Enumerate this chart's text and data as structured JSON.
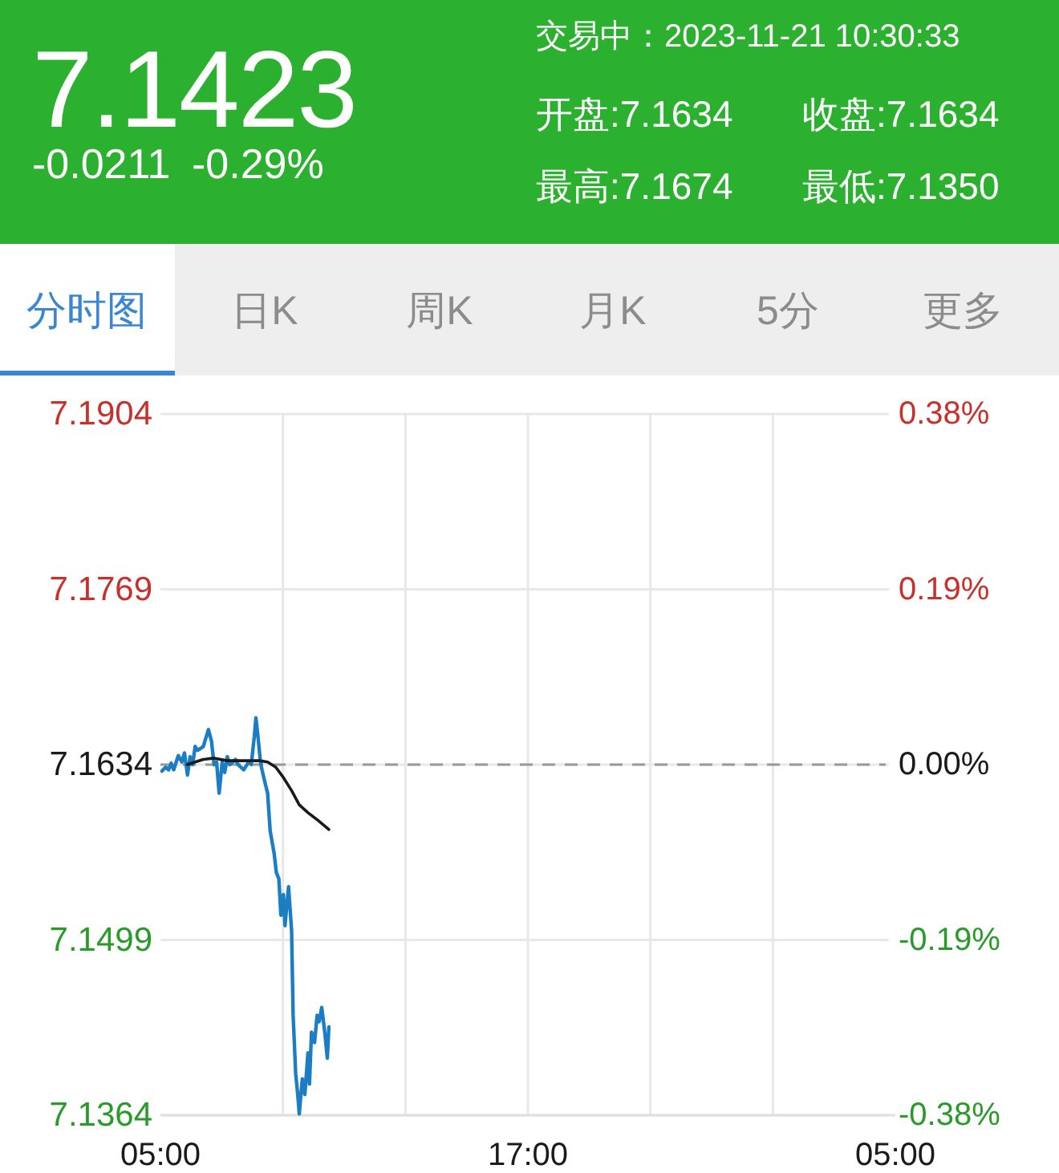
{
  "chart_data": {
    "type": "line",
    "title": "7.1423",
    "subtitle": "-0.0211 -0.29%",
    "annotations": [
      "交易中：2023-11-21 10:30:33",
      "开盘:7.1634",
      "收盘:7.1634",
      "最高:7.1674",
      "最低:7.1350",
      "分时图",
      "日K",
      "周K",
      "月K",
      "5分",
      "更多"
    ],
    "xlim": [
      "2023-11-21T05:00",
      "2023-11-22T05:00"
    ],
    "xticks": [
      {
        "value": "2023-11-21T05:00",
        "label": "05:00"
      },
      {
        "value": "2023-11-21T09:00",
        "label": null
      },
      {
        "value": "2023-11-21T13:00",
        "label": null
      },
      {
        "value": "2023-11-21T17:00",
        "label": "17:00"
      },
      {
        "value": "2023-11-21T21:00",
        "label": null
      },
      {
        "value": "2023-11-22T01:00",
        "label": null
      },
      {
        "value": "2023-11-22T05:00",
        "label": "05:00"
      }
    ],
    "ylim": [
      7.1364,
      7.1904
    ],
    "yticks": [
      7.1364,
      7.1499,
      7.1634,
      7.1769,
      7.1904
    ],
    "y2lim": [
      -0.38,
      0.38
    ],
    "y2ticks": [
      {
        "value": -0.38,
        "label": "-0.38%"
      },
      {
        "value": -0.19,
        "label": "-0.19%"
      },
      {
        "value": 0,
        "label": "0.00%"
      },
      {
        "value": 0.19,
        "label": "0.19%"
      },
      {
        "value": 0.38,
        "label": "0.38%"
      }
    ],
    "grid": true,
    "ref_lines": [
      {
        "axis": "y",
        "value": 7.1634,
        "color": "#999999",
        "line_style": "dashed"
      }
    ],
    "series": [
      {
        "color": "#1b7dc3",
        "x": [
          "2023-11-21T05:03",
          "2023-11-21T05:10",
          "2023-11-21T05:16",
          "2023-11-21T05:21",
          "2023-11-21T05:26",
          "2023-11-21T05:35",
          "2023-11-21T05:42",
          "2023-11-21T05:47",
          "2023-11-21T05:53",
          "2023-11-21T05:58",
          "2023-11-21T06:03",
          "2023-11-21T06:08",
          "2023-11-21T06:13",
          "2023-11-21T06:24",
          "2023-11-21T06:34",
          "2023-11-21T06:40",
          "2023-11-21T06:45",
          "2023-11-21T06:50",
          "2023-11-21T06:55",
          "2023-11-21T07:01",
          "2023-11-21T07:06",
          "2023-11-21T07:11",
          "2023-11-21T07:16",
          "2023-11-21T07:27",
          "2023-11-21T07:32",
          "2023-11-21T07:43",
          "2023-11-21T07:53",
          "2023-11-21T07:58",
          "2023-11-21T08:04",
          "2023-11-21T08:07",
          "2023-11-21T08:11",
          "2023-11-21T08:16",
          "2023-11-21T08:19",
          "2023-11-21T08:25",
          "2023-11-21T08:30",
          "2023-11-21T08:35",
          "2023-11-21T08:43",
          "2023-11-21T08:47",
          "2023-11-21T08:52",
          "2023-11-21T08:56",
          "2023-11-21T09:01",
          "2023-11-21T09:04",
          "2023-11-21T09:11",
          "2023-11-21T09:17",
          "2023-11-21T09:20",
          "2023-11-21T09:25",
          "2023-11-21T09:29",
          "2023-11-21T09:32",
          "2023-11-21T09:38",
          "2023-11-21T09:43",
          "2023-11-21T09:49",
          "2023-11-21T09:52",
          "2023-11-21T09:56",
          "2023-11-21T10:02",
          "2023-11-21T10:07",
          "2023-11-21T10:11",
          "2023-11-21T10:16",
          "2023-11-21T10:22",
          "2023-11-21T10:27",
          "2023-11-21T10:30"
        ],
        "values": [
          7.1629,
          7.1632,
          7.163,
          7.1635,
          7.163,
          7.1641,
          7.1636,
          7.1643,
          7.1626,
          7.164,
          7.1634,
          7.1648,
          7.1645,
          7.1648,
          7.1661,
          7.1652,
          7.1634,
          7.1636,
          7.1612,
          7.1636,
          7.1628,
          7.164,
          7.1634,
          7.1638,
          7.1634,
          7.163,
          7.1636,
          7.1634,
          7.1656,
          7.167,
          7.1656,
          7.1636,
          7.163,
          7.162,
          7.1612,
          7.1583,
          7.1565,
          7.1551,
          7.1546,
          7.1518,
          7.1534,
          7.151,
          7.154,
          7.1506,
          7.1441,
          7.1396,
          7.138,
          7.1365,
          7.1392,
          7.138,
          7.1412,
          7.1388,
          7.1428,
          7.142,
          7.1441,
          7.1436,
          7.1447,
          7.1428,
          7.1408,
          7.1432
        ]
      },
      {
        "color": "#1a1a1a",
        "x": [
          "2023-11-21T05:53",
          "2023-11-21T06:08",
          "2023-11-21T06:24",
          "2023-11-21T06:45",
          "2023-11-21T07:11",
          "2023-11-21T07:43",
          "2023-11-21T08:14",
          "2023-11-21T08:30",
          "2023-11-21T08:46",
          "2023-11-21T09:01",
          "2023-11-21T09:17",
          "2023-11-21T09:32",
          "2023-11-21T09:49",
          "2023-11-21T10:09",
          "2023-11-21T10:30"
        ],
        "values": [
          7.1634,
          7.1636,
          7.1638,
          7.1639,
          7.1637,
          7.1637,
          7.1637,
          7.1636,
          7.1632,
          7.1624,
          7.1614,
          7.1603,
          7.1597,
          7.1591,
          7.1584
        ]
      }
    ]
  }
}
